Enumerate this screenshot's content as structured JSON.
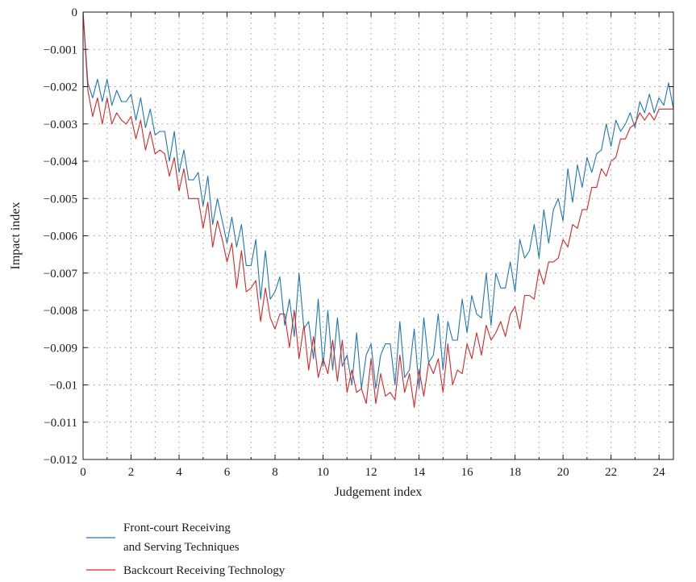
{
  "chart_data": {
    "type": "line",
    "title": "",
    "xlabel": "Judgement index",
    "ylabel": "Impact index",
    "xlim": [
      0,
      24.6
    ],
    "ylim": [
      -0.012,
      0
    ],
    "x_ticks": [
      "0",
      "2",
      "4",
      "6",
      "8",
      "10",
      "12",
      "14",
      "16",
      "18",
      "20",
      "22",
      "24"
    ],
    "y_ticks": [
      "0",
      "−0.001",
      "−0.002",
      "−0.003",
      "−0.004",
      "−0.005",
      "−0.006",
      "−0.007",
      "−0.008",
      "−0.009",
      "−0.01",
      "−0.011",
      "−0.012"
    ],
    "grid": true,
    "legend_position": "bottom-left",
    "series": [
      {
        "name_lines": [
          "Front-court Receiving",
          "and Serving Techniques"
        ],
        "color": "#1f77b4",
        "x": [
          0,
          0.2,
          0.4,
          0.6,
          0.8,
          1.0,
          1.2,
          1.4,
          1.6,
          1.8,
          2.0,
          2.2,
          2.4,
          2.6,
          2.8,
          3.0,
          3.2,
          3.4,
          3.6,
          3.8,
          4.0,
          4.2,
          4.4,
          4.6,
          4.8,
          5.0,
          5.2,
          5.4,
          5.6,
          5.8,
          6.0,
          6.2,
          6.4,
          6.6,
          6.8,
          7.0,
          7.2,
          7.4,
          7.6,
          7.8,
          8.0,
          8.2,
          8.4,
          8.6,
          8.8,
          9.0,
          9.2,
          9.4,
          9.6,
          9.8,
          10.0,
          10.2,
          10.4,
          10.6,
          10.8,
          11.0,
          11.2,
          11.4,
          11.6,
          11.8,
          12.0,
          12.2,
          12.4,
          12.6,
          12.8,
          13.0,
          13.2,
          13.4,
          13.6,
          13.8,
          14.0,
          14.2,
          14.4,
          14.6,
          14.8,
          15.0,
          15.2,
          15.4,
          15.6,
          15.8,
          16.0,
          16.2,
          16.4,
          16.6,
          16.8,
          17.0,
          17.2,
          17.4,
          17.6,
          17.8,
          18.0,
          18.2,
          18.4,
          18.6,
          18.8,
          19.0,
          19.2,
          19.4,
          19.6,
          19.8,
          20.0,
          20.2,
          20.4,
          20.6,
          20.8,
          21.0,
          21.2,
          21.4,
          21.6,
          21.8,
          22.0,
          22.2,
          22.4,
          22.6,
          22.8,
          23.0,
          23.2,
          23.4,
          23.6,
          23.8,
          24.0,
          24.2,
          24.4,
          24.6
        ],
        "values": [
          0.0,
          -0.0019,
          -0.0023,
          -0.0018,
          -0.0024,
          -0.0018,
          -0.0025,
          -0.0021,
          -0.0024,
          -0.0024,
          -0.0022,
          -0.0029,
          -0.0023,
          -0.0031,
          -0.0026,
          -0.0033,
          -0.0032,
          -0.0032,
          -0.004,
          -0.0032,
          -0.0043,
          -0.0037,
          -0.0045,
          -0.0045,
          -0.0043,
          -0.0052,
          -0.0044,
          -0.0057,
          -0.005,
          -0.0056,
          -0.0062,
          -0.0055,
          -0.0063,
          -0.0057,
          -0.0068,
          -0.0068,
          -0.0061,
          -0.0077,
          -0.0064,
          -0.0077,
          -0.0075,
          -0.0071,
          -0.0084,
          -0.0077,
          -0.0087,
          -0.007,
          -0.0085,
          -0.0083,
          -0.0093,
          -0.0077,
          -0.0095,
          -0.008,
          -0.0096,
          -0.0082,
          -0.0095,
          -0.0092,
          -0.01,
          -0.0086,
          -0.0101,
          -0.0092,
          -0.0089,
          -0.0101,
          -0.0092,
          -0.0089,
          -0.0089,
          -0.01,
          -0.0083,
          -0.0098,
          -0.0096,
          -0.0085,
          -0.0101,
          -0.0082,
          -0.0094,
          -0.0092,
          -0.0081,
          -0.0096,
          -0.0083,
          -0.0088,
          -0.0088,
          -0.0077,
          -0.0086,
          -0.0076,
          -0.0081,
          -0.0082,
          -0.007,
          -0.0084,
          -0.007,
          -0.0074,
          -0.0074,
          -0.0067,
          -0.0075,
          -0.0061,
          -0.0066,
          -0.0064,
          -0.0057,
          -0.0066,
          -0.0053,
          -0.0062,
          -0.0053,
          -0.005,
          -0.0056,
          -0.0042,
          -0.0051,
          -0.0041,
          -0.0047,
          -0.0039,
          -0.0043,
          -0.0038,
          -0.0037,
          -0.003,
          -0.0036,
          -0.0029,
          -0.0032,
          -0.003,
          -0.0027,
          -0.0031,
          -0.0024,
          -0.0027,
          -0.0022,
          -0.0027,
          -0.0023,
          -0.0025,
          -0.0019,
          -0.0026
        ]
      },
      {
        "name": "Backcourt Receiving Technology",
        "color": "#d62728",
        "x": [
          0,
          0.2,
          0.4,
          0.6,
          0.8,
          1.0,
          1.2,
          1.4,
          1.6,
          1.8,
          2.0,
          2.2,
          2.4,
          2.6,
          2.8,
          3.0,
          3.2,
          3.4,
          3.6,
          3.8,
          4.0,
          4.2,
          4.4,
          4.6,
          4.8,
          5.0,
          5.2,
          5.4,
          5.6,
          5.8,
          6.0,
          6.2,
          6.4,
          6.6,
          6.8,
          7.0,
          7.2,
          7.4,
          7.6,
          7.8,
          8.0,
          8.2,
          8.4,
          8.6,
          8.8,
          9.0,
          9.2,
          9.4,
          9.6,
          9.8,
          10.0,
          10.2,
          10.4,
          10.6,
          10.8,
          11.0,
          11.2,
          11.4,
          11.6,
          11.8,
          12.0,
          12.2,
          12.4,
          12.6,
          12.8,
          13.0,
          13.2,
          13.4,
          13.6,
          13.8,
          14.0,
          14.2,
          14.4,
          14.6,
          14.8,
          15.0,
          15.2,
          15.4,
          15.6,
          15.8,
          16.0,
          16.2,
          16.4,
          16.6,
          16.8,
          17.0,
          17.2,
          17.4,
          17.6,
          17.8,
          18.0,
          18.2,
          18.4,
          18.6,
          18.8,
          19.0,
          19.2,
          19.4,
          19.6,
          19.8,
          20.0,
          20.2,
          20.4,
          20.6,
          20.8,
          21.0,
          21.2,
          21.4,
          21.6,
          21.8,
          22.0,
          22.2,
          22.4,
          22.6,
          22.8,
          23.0,
          23.2,
          23.4,
          23.6,
          23.8,
          24.0,
          24.2,
          24.4,
          24.6
        ],
        "values": [
          0.0,
          -0.0021,
          -0.0028,
          -0.0023,
          -0.003,
          -0.0023,
          -0.003,
          -0.0027,
          -0.0029,
          -0.003,
          -0.0028,
          -0.0034,
          -0.0029,
          -0.0037,
          -0.0032,
          -0.0038,
          -0.0037,
          -0.0038,
          -0.0044,
          -0.0039,
          -0.0048,
          -0.0042,
          -0.005,
          -0.005,
          -0.005,
          -0.0058,
          -0.0051,
          -0.0063,
          -0.0056,
          -0.0061,
          -0.0067,
          -0.0062,
          -0.0074,
          -0.0064,
          -0.0075,
          -0.0074,
          -0.0072,
          -0.0083,
          -0.0074,
          -0.0082,
          -0.0085,
          -0.0081,
          -0.0081,
          -0.009,
          -0.008,
          -0.0093,
          -0.0084,
          -0.0096,
          -0.0087,
          -0.0098,
          -0.0093,
          -0.0097,
          -0.0088,
          -0.0099,
          -0.0088,
          -0.0102,
          -0.0096,
          -0.0102,
          -0.0101,
          -0.0105,
          -0.0093,
          -0.0105,
          -0.0097,
          -0.0103,
          -0.0102,
          -0.0104,
          -0.0092,
          -0.0102,
          -0.0097,
          -0.0106,
          -0.0096,
          -0.0103,
          -0.0094,
          -0.0097,
          -0.0093,
          -0.0102,
          -0.0089,
          -0.01,
          -0.0096,
          -0.0097,
          -0.0089,
          -0.0093,
          -0.0086,
          -0.0092,
          -0.0084,
          -0.0088,
          -0.0086,
          -0.0083,
          -0.0087,
          -0.0081,
          -0.0079,
          -0.0085,
          -0.0076,
          -0.0076,
          -0.0077,
          -0.0069,
          -0.0073,
          -0.0067,
          -0.0067,
          -0.0066,
          -0.0061,
          -0.0063,
          -0.0057,
          -0.0058,
          -0.0053,
          -0.0053,
          -0.0047,
          -0.0047,
          -0.0042,
          -0.0044,
          -0.004,
          -0.0039,
          -0.0034,
          -0.0034,
          -0.0031,
          -0.003,
          -0.0027,
          -0.0029,
          -0.0027,
          -0.0029,
          -0.0026,
          -0.0026,
          -0.0026,
          -0.0026
        ]
      }
    ]
  }
}
